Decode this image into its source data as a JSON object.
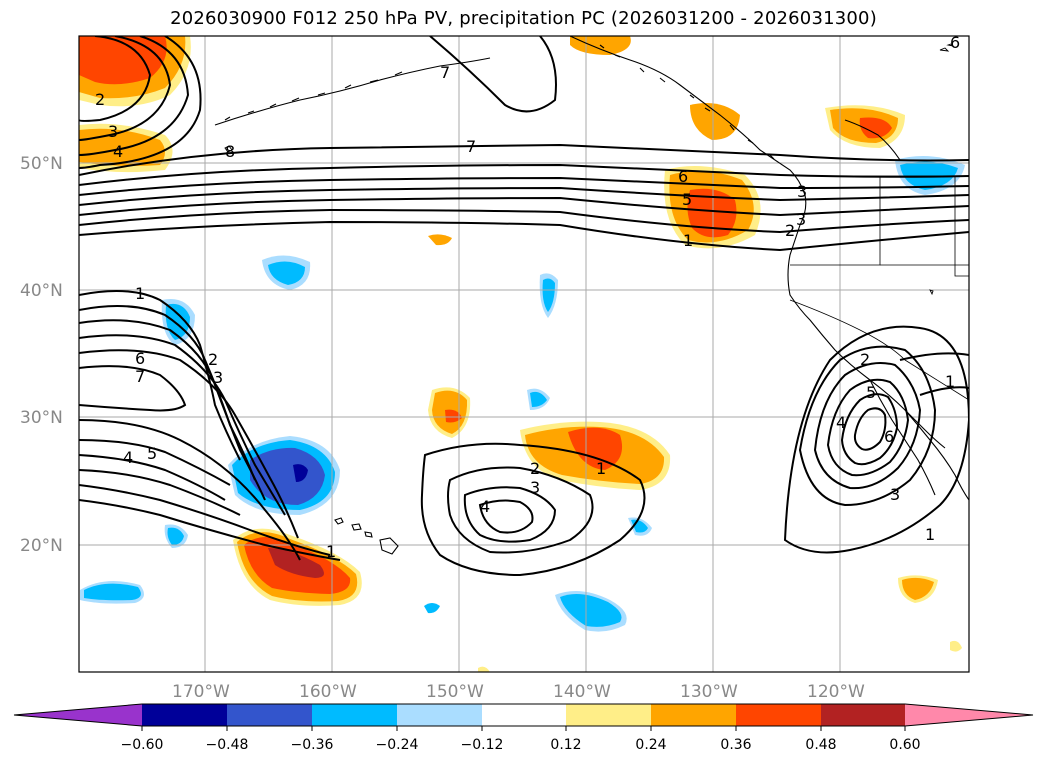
{
  "title": "2026030900 F012 250 hPa PV, precipitation PC (2026031200 - 2026031300)",
  "lat_labels": [
    "50°N",
    "40°N",
    "30°N",
    "20°N"
  ],
  "lon_labels": [
    "170°W",
    "160°W",
    "150°W",
    "140°W",
    "130°W",
    "120°W"
  ],
  "colorbar": {
    "colors": [
      "#9933cc",
      "#000099",
      "#3355cc",
      "#00bbff",
      "#aaddff",
      "#ffffff",
      "#ffee88",
      "#ffa500",
      "#ff4500",
      "#b22222",
      "#ff88aa"
    ],
    "ticks": [
      "−0.60",
      "−0.48",
      "−0.36",
      "−0.24",
      "−0.12",
      "0.12",
      "0.24",
      "0.36",
      "0.48",
      "0.60"
    ]
  },
  "pv_contour_labels": [
    "1",
    "2",
    "3",
    "4",
    "5",
    "6",
    "7",
    "8",
    "2",
    "3",
    "4",
    "1",
    "6",
    "7",
    "5",
    "4",
    "2",
    "3",
    "1",
    "2",
    "3",
    "4",
    "1",
    "6",
    "4",
    "3",
    "1",
    "2",
    "7",
    "6",
    "5",
    "3",
    "2",
    "1",
    "4",
    "3",
    "6",
    "7",
    "8"
  ],
  "colors": {
    "grid": "#aaaaaa",
    "coast": "#000000",
    "contour": "#000000"
  }
}
